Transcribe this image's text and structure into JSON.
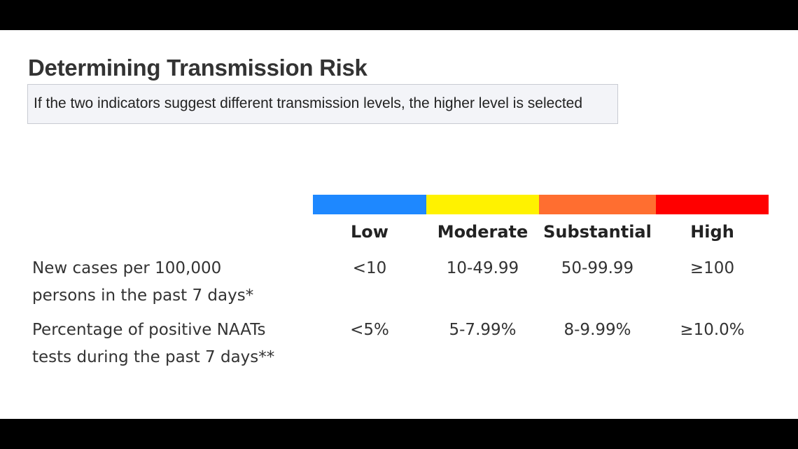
{
  "title": "Determining Transmission Risk",
  "note": "If the two indicators suggest different transmission levels, the higher level is selected",
  "levels": [
    {
      "label": "Low",
      "color": "#1e88ff"
    },
    {
      "label": "Moderate",
      "color": "#fff200"
    },
    {
      "label": "Substantial",
      "color": "#ff6e30"
    },
    {
      "label": "High",
      "color": "#ff0000"
    }
  ],
  "rows": [
    {
      "label_line1": "New cases per 100,000",
      "label_line2": "persons in the past 7 days*",
      "values": [
        "<10",
        "10-49.99",
        "50-99.99",
        "≥100"
      ]
    },
    {
      "label_line1": "Percentage of positive NAATs",
      "label_line2": "tests during the past 7 days**",
      "values": [
        "<5%",
        "5-7.99%",
        "8-9.99%",
        "≥10.0%"
      ]
    }
  ]
}
